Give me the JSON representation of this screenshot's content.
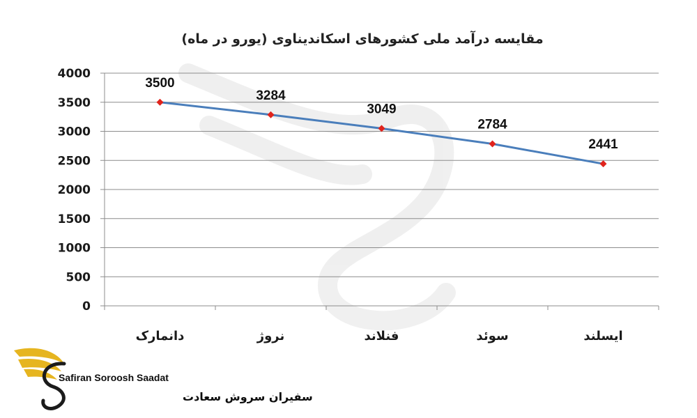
{
  "chart_data": {
    "type": "line",
    "title": "مقایسه درآمد ملی کشورهای اسکاندیناوی (یورو در ماه)",
    "categories": [
      "دانمارک",
      "نروژ",
      "فنلاند",
      "سوئد",
      "ایسلند"
    ],
    "series": [
      {
        "values": [
          3500,
          3284,
          3049,
          2784,
          2441
        ],
        "color": "#4a7ebb",
        "marker_color": "#e0231c"
      }
    ],
    "ylim": [
      0,
      4000
    ],
    "yticks": [
      0,
      500,
      1000,
      1500,
      2000,
      2500,
      3000,
      3500,
      4000
    ],
    "grid": true,
    "legend": "none",
    "data_labels": true
  },
  "logo": {
    "en_text": "Safiran Soroosh Saadat",
    "fa_text": "سفیران سروش سعادت",
    "colors": {
      "gold": "#e6b520",
      "dark": "#1b1b1b"
    }
  }
}
